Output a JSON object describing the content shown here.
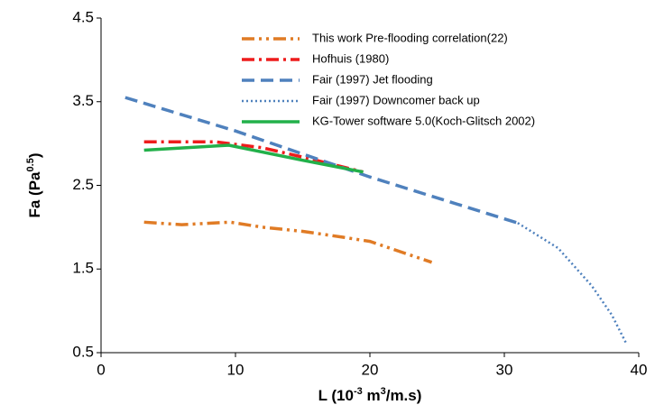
{
  "chart_data": {
    "type": "line",
    "x_label": [
      "L (10",
      "-3",
      " m",
      "3",
      "/m.s)"
    ],
    "y_label": [
      "Fa  (Pa",
      "0.5",
      ")"
    ],
    "xlim": [
      0,
      40
    ],
    "xticks": [
      0,
      10,
      20,
      30,
      40
    ],
    "ylim": [
      0.5,
      4.5
    ],
    "yticks": [
      0.5,
      1.5,
      2.5,
      3.5,
      4.5
    ],
    "grid": false,
    "legend": "upper center",
    "series": [
      {
        "name": "This work Pre-flooding correlation(22)",
        "color": "#e07b25",
        "dash": "dash-dot-dot",
        "x": [
          3.2,
          6,
          9.6,
          12,
          15,
          18,
          20,
          24.6
        ],
        "values": [
          2.06,
          2.03,
          2.06,
          2.0,
          1.95,
          1.88,
          1.83,
          1.58
        ]
      },
      {
        "name": "Hofhuis (1980)",
        "color": "#ee1c1c",
        "dash": "dash-dot",
        "x": [
          3.2,
          8.5,
          12,
          16,
          19.5
        ],
        "values": [
          3.02,
          3.02,
          2.95,
          2.8,
          2.66
        ]
      },
      {
        "name": "Fair (1997) Jet flooding",
        "color": "#4f81bd",
        "dash": "dashed",
        "x": [
          1.8,
          10,
          20,
          31
        ],
        "values": [
          3.55,
          3.15,
          2.6,
          2.05
        ]
      },
      {
        "name": "Fair (1997) Downcomer back up",
        "color": "#4f81bd",
        "dash": "dotted",
        "x": [
          31,
          34,
          36.5,
          38,
          39.1
        ],
        "values": [
          2.05,
          1.75,
          1.3,
          0.95,
          0.6
        ]
      },
      {
        "name": "KG-Tower software 5.0(Koch-Glitsch 2002)",
        "color": "#22b04a",
        "dash": "solid",
        "x": [
          3.2,
          9.5,
          15,
          19.5
        ],
        "values": [
          2.92,
          2.98,
          2.8,
          2.66
        ]
      }
    ]
  }
}
